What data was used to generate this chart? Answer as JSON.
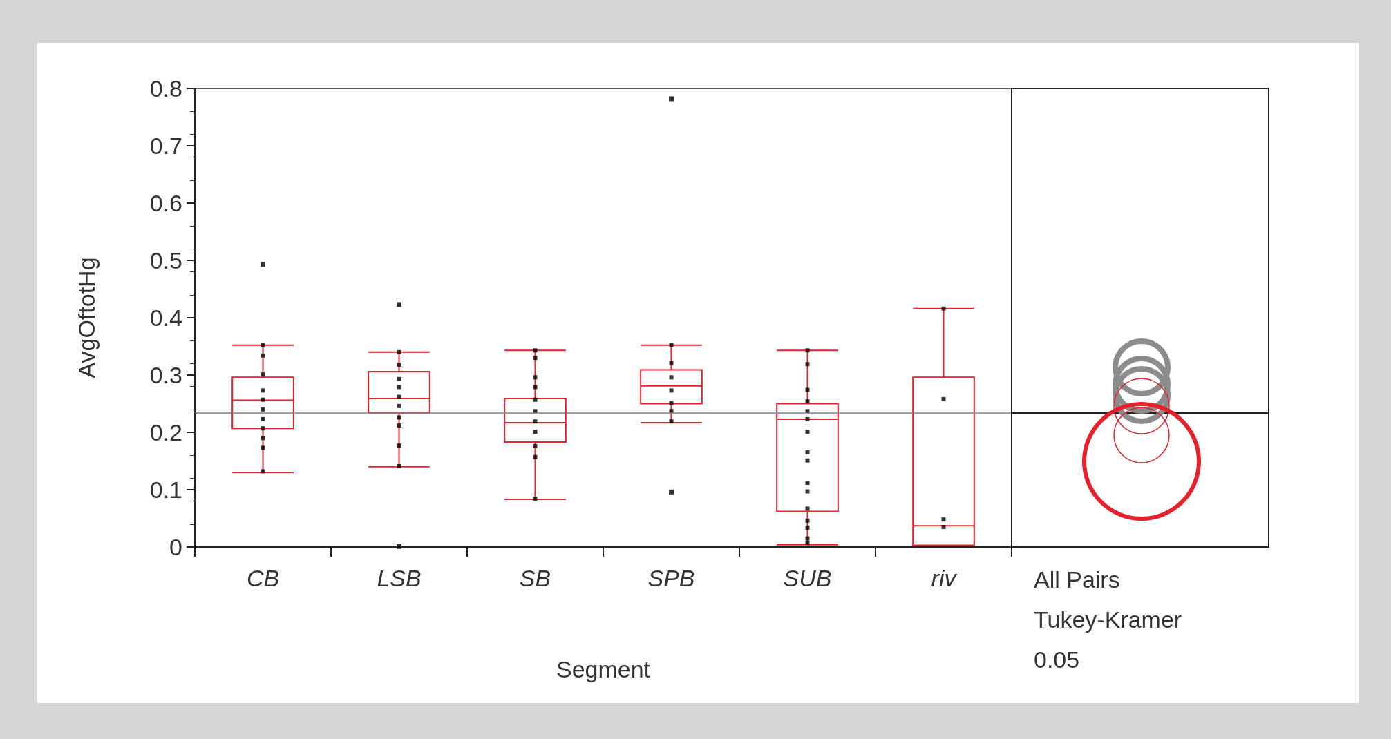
{
  "chart_data": [
    {
      "type": "box",
      "xlabel": "Segment",
      "ylabel": "AvgOftotHg",
      "categories": [
        "CB",
        "LSB",
        "SB",
        "SPB",
        "SUB",
        "riv"
      ],
      "ylim": [
        0,
        0.8
      ],
      "yticks": [
        0,
        0.1,
        0.2,
        0.3,
        0.4,
        0.5,
        0.6,
        0.7,
        0.8
      ],
      "grid": false,
      "marker": "square",
      "ref_lines": [
        {
          "axis": "y",
          "value": 0.234,
          "color": "#808080"
        }
      ],
      "series": [
        {
          "type": "box",
          "color": "#e8202a",
          "boxes": [
            {
              "low": 0.13,
              "q1": 0.207,
              "median": 0.256,
              "q3": 0.296,
              "high": 0.352,
              "outliers": [
                0.493
              ]
            },
            {
              "low": 0.14,
              "q1": 0.234,
              "median": 0.259,
              "q3": 0.306,
              "high": 0.34,
              "outliers": [
                0.423,
                0.001
              ]
            },
            {
              "low": 0.083,
              "q1": 0.183,
              "median": 0.217,
              "q3": 0.259,
              "high": 0.343
            },
            {
              "low": 0.217,
              "q1": 0.25,
              "median": 0.281,
              "q3": 0.309,
              "high": 0.352,
              "outliers": [
                0.782,
                0.096
              ]
            },
            {
              "low": 0.004,
              "q1": 0.062,
              "median": 0.223,
              "q3": 0.25,
              "high": 0.343
            },
            {
              "low": 0.003,
              "q1": 0.003,
              "median": 0.037,
              "q3": 0.296,
              "high": 0.416
            }
          ]
        },
        {
          "type": "scatter",
          "color": "#000000",
          "x": [
            "CB",
            "CB",
            "CB",
            "CB",
            "CB",
            "CB",
            "CB",
            "CB",
            "CB",
            "CB",
            "CB",
            "LSB",
            "LSB",
            "LSB",
            "LSB",
            "LSB",
            "LSB",
            "LSB",
            "LSB",
            "LSB",
            "LSB",
            "SB",
            "SB",
            "SB",
            "SB",
            "SB",
            "SB",
            "SB",
            "SB",
            "SB",
            "SB",
            "SB",
            "SPB",
            "SPB",
            "SPB",
            "SPB",
            "SPB",
            "SPB",
            "SPB",
            "SUB",
            "SUB",
            "SUB",
            "SUB",
            "SUB",
            "SUB",
            "SUB",
            "SUB",
            "SUB",
            "SUB",
            "SUB",
            "SUB",
            "SUB",
            "SUB",
            "SUB",
            "SUB",
            "riv",
            "riv",
            "riv",
            "riv"
          ],
          "values": [
            0.352,
            0.334,
            0.301,
            0.273,
            0.257,
            0.24,
            0.223,
            0.207,
            0.19,
            0.173,
            0.132,
            0.34,
            0.318,
            0.293,
            0.279,
            0.262,
            0.246,
            0.226,
            0.212,
            0.177,
            0.141,
            0.343,
            0.33,
            0.296,
            0.279,
            0.257,
            0.237,
            0.219,
            0.201,
            0.176,
            0.157,
            0.084,
            0.352,
            0.321,
            0.296,
            0.273,
            0.251,
            0.237,
            0.219,
            0.343,
            0.319,
            0.274,
            0.254,
            0.237,
            0.223,
            0.201,
            0.165,
            0.151,
            0.112,
            0.097,
            0.067,
            0.046,
            0.034,
            0.015,
            0.007,
            0.416,
            0.258,
            0.048,
            0.035
          ]
        }
      ]
    },
    {
      "type": "other",
      "annotations": [
        "All Pairs",
        "Tukey-Kramer",
        "0.05"
      ]
    }
  ]
}
